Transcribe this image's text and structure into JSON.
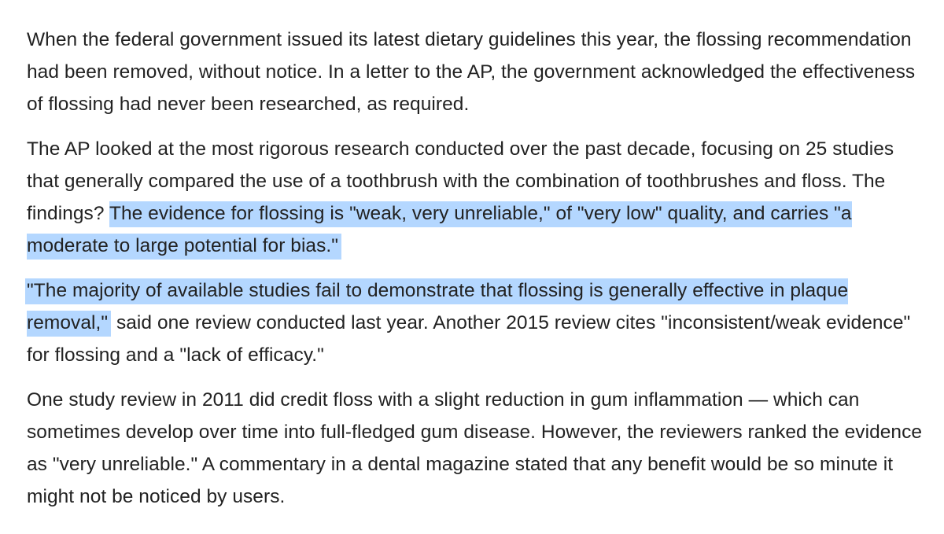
{
  "colors": {
    "text": "#222222",
    "selection_highlight": "#b4d7ff",
    "background": "#ffffff"
  },
  "paragraphs": [
    {
      "text": "When the federal government issued its latest dietary guidelines this year, the flossing recommendation had been removed, without notice. In a letter to the AP, the government acknowledged the effectiveness of flossing had never been researched, as required."
    },
    {
      "before": "The AP looked at the most rigorous research conducted over the past decade, focusing on 25 studies that generally compared the use of a toothbrush with the combination of toothbrushes and floss. The findings? ",
      "highlighted": "The evidence for flossing is \"weak, very unreliable,\" of \"very low\" quality, and carries \"a moderate to large potential for bias.\""
    },
    {
      "highlighted": "\"The majority of available studies fail to demonstrate that flossing is generally effective in plaque removal,\"",
      "after": " said one review conducted last year. Another 2015 review cites \"inconsistent/weak evidence\" for flossing and a \"lack of efficacy.\""
    },
    {
      "text": "One study review in 2011 did credit floss with a slight reduction in gum inflammation — which can sometimes develop over time into full-fledged gum disease. However, the reviewers ranked the evidence as \"very unreliable.\" A commentary in a dental magazine stated that any benefit would be so minute it might not be noticed by users."
    }
  ]
}
